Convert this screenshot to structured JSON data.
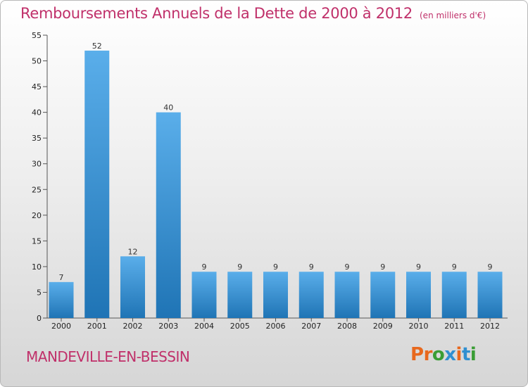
{
  "title": "Remboursements Annuels de la Dette de 2000 à 2012",
  "unit_note": "(en milliers d'€)",
  "commune": "MANDEVILLE-EN-BESSIN",
  "logo": {
    "text": "Proxiti",
    "colors": [
      "#e8681d",
      "#e8681d",
      "#3a9d35",
      "#2f8fd0",
      "#e8681d",
      "#2f8fd0",
      "#3a9d35"
    ]
  },
  "colors": {
    "accent": "#c0306a",
    "bar_light": "#5aaeea",
    "bar_dark": "#1f74b5"
  },
  "chart_data": {
    "type": "bar",
    "title": "Remboursements Annuels de la Dette de 2000 à 2012",
    "categories": [
      "2000",
      "2001",
      "2002",
      "2003",
      "2004",
      "2005",
      "2006",
      "2007",
      "2008",
      "2009",
      "2010",
      "2011",
      "2012"
    ],
    "values": [
      7,
      52,
      12,
      40,
      9,
      9,
      9,
      9,
      9,
      9,
      9,
      9,
      9
    ],
    "ylim": [
      0,
      55
    ],
    "yticks": [
      0,
      5,
      10,
      15,
      20,
      25,
      30,
      35,
      40,
      45,
      50,
      55
    ],
    "xlabel": "",
    "ylabel": "",
    "grid": false
  }
}
